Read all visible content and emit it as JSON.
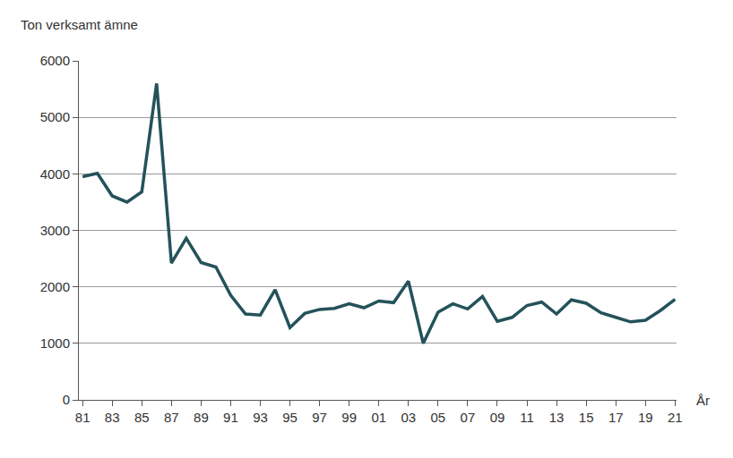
{
  "chart_data": {
    "type": "line",
    "ylabel": "Ton verksamt ämne",
    "xlabel": "År",
    "categories": [
      "81",
      null,
      "83",
      null,
      "85",
      null,
      "87",
      null,
      "89",
      null,
      "91",
      null,
      "93",
      null,
      "95",
      null,
      "97",
      null,
      "99",
      null,
      "01",
      null,
      "03",
      null,
      "05",
      null,
      "07",
      null,
      "09",
      null,
      "11",
      null,
      "13",
      null,
      "15",
      null,
      "17",
      null,
      "19",
      null,
      "21"
    ],
    "values": [
      3950,
      4010,
      3610,
      3500,
      3680,
      5600,
      2420,
      2860,
      2430,
      2350,
      1850,
      1520,
      1500,
      1950,
      1280,
      1530,
      1600,
      1620,
      1700,
      1630,
      1750,
      1720,
      2100,
      1000,
      1550,
      1700,
      1610,
      1830,
      1390,
      1460,
      1670,
      1730,
      1520,
      1770,
      1710,
      1540,
      1460,
      1380,
      1410,
      1580,
      1780
    ],
    "color": "#24525a",
    "ylim": [
      0,
      6000
    ],
    "yticks": [
      0,
      1000,
      2000,
      3000,
      4000,
      5000,
      6000
    ],
    "grid": true
  }
}
